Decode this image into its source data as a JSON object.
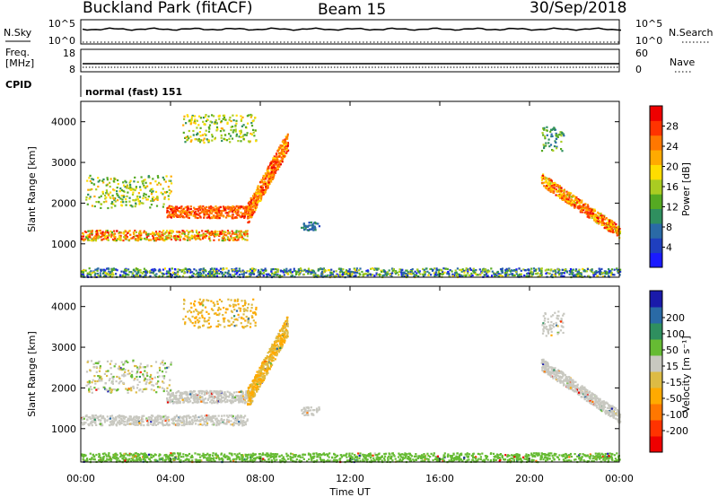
{
  "header": {
    "station": "Buckland Park (fitACF)",
    "beam": "Beam 15",
    "date": "30/Sep/2018"
  },
  "params": {
    "nsky_label": "N.Sky",
    "nsearch_label": "N.Search",
    "nsky_ticks": [
      "10^5",
      "10^0"
    ],
    "nsearch_ticks": [
      "10^5",
      "10^0"
    ],
    "freq_label_1": "Freq.",
    "freq_label_2": "[MHz]",
    "freq_ticks": [
      "18",
      "8"
    ],
    "nave_label": "Nave",
    "nave_ticks": [
      "60",
      "0"
    ],
    "cpid_label": "CPID",
    "cpid_value": "normal (fast) 151"
  },
  "colors": {
    "power": [
      "#1a1aff",
      "#1f3fbf",
      "#2a6aa6",
      "#2f8f5f",
      "#55aa22",
      "#aacc22",
      "#ffdd00",
      "#ffaa00",
      "#ff7700",
      "#ff3300",
      "#ee0000"
    ],
    "velocity": [
      "#ee0000",
      "#ff3300",
      "#ff7700",
      "#ffaa00",
      "#ddbb44",
      "#c8c8c0",
      "#66bb33",
      "#2f8f5f",
      "#2a6aa6",
      "#1a1aaa"
    ]
  },
  "chart_data": [
    {
      "type": "heatmap",
      "name": "power",
      "ylabel": "Slant Range [km]",
      "xlabel": "Time UT",
      "x_ticks": [
        "00:00",
        "04:00",
        "08:00",
        "12:00",
        "16:00",
        "20:00",
        "00:00"
      ],
      "x_range_hours": [
        0,
        24
      ],
      "y_ticks": [
        "1000",
        "2000",
        "3000",
        "4000"
      ],
      "y_range_km": [
        180,
        4500
      ],
      "colorbar_label": "Power [dB]",
      "colorbar_ticks": [
        "4",
        "8",
        "12",
        "16",
        "20",
        "24",
        "28"
      ],
      "colorbar_range": [
        0,
        30
      ]
    },
    {
      "type": "heatmap",
      "name": "velocity",
      "ylabel": "Slant Range [km]",
      "xlabel": "Time UT",
      "x_ticks": [
        "00:00",
        "04:00",
        "08:00",
        "12:00",
        "16:00",
        "20:00",
        "00:00"
      ],
      "x_range_hours": [
        0,
        24
      ],
      "y_ticks": [
        "1000",
        "2000",
        "3000",
        "4000"
      ],
      "y_range_km": [
        180,
        4500
      ],
      "colorbar_label": "Velocity [m s⁻¹]",
      "colorbar_ticks": [
        "-200",
        "-100",
        "-50",
        "-15",
        "15",
        "50",
        "100",
        "200"
      ],
      "colorbar_range": [
        -250,
        250
      ]
    }
  ]
}
